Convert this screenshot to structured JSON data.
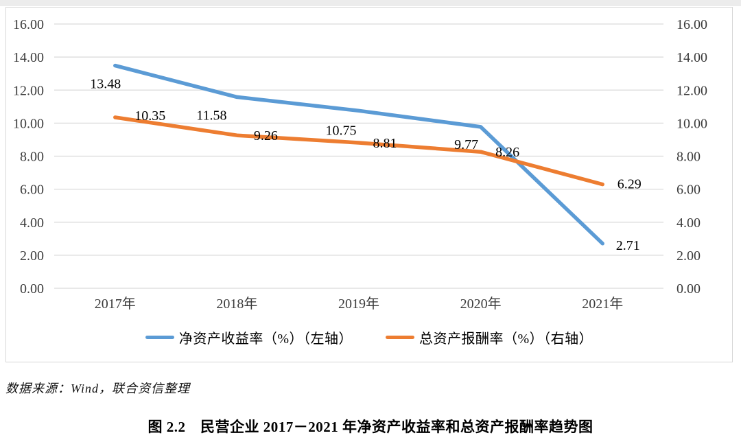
{
  "page": {
    "source_note": "数据来源：Wind，联合资信整理",
    "caption": "图 2.2　民营企业 2017－2021 年净资产收益率和总资产报酬率趋势图"
  },
  "chart_data": {
    "type": "line",
    "title": "图 2.2 民营企业 2017－2021 年净资产收益率和总资产报酬率趋势图",
    "categories": [
      "2017年",
      "2018年",
      "2019年",
      "2020年",
      "2021年"
    ],
    "series": [
      {
        "name": "净资产收益率（%）（左轴）",
        "axis": "left",
        "color": "#5B9BD5",
        "values": [
          13.48,
          11.58,
          10.75,
          9.77,
          2.71
        ]
      },
      {
        "name": "总资产报酬率（%）（右轴）",
        "axis": "right",
        "color": "#ED7D31",
        "values": [
          10.35,
          9.26,
          8.81,
          8.26,
          6.29
        ]
      }
    ],
    "left_axis": {
      "min": 0,
      "max": 16,
      "ticks": [
        "0.00",
        "2.00",
        "4.00",
        "6.00",
        "8.00",
        "10.00",
        "12.00",
        "14.00",
        "16.00"
      ]
    },
    "right_axis": {
      "min": 0,
      "max": 16,
      "ticks": [
        "0.00",
        "2.00",
        "4.00",
        "6.00",
        "8.00",
        "10.00",
        "12.00",
        "14.00",
        "16.00"
      ]
    },
    "grid": true,
    "legend_position": "bottom",
    "data_labels": true,
    "label_offsets": [
      [
        [
          -14,
          26
        ],
        [
          -37,
          26
        ],
        [
          -26,
          28
        ],
        [
          -21,
          25
        ],
        [
          37,
          2
        ]
      ],
      [
        [
          51,
          -3
        ],
        [
          42,
          0
        ],
        [
          38,
          0
        ],
        [
          39,
          0
        ],
        [
          39,
          -1
        ]
      ]
    ],
    "grid_color": "#d9d9d9",
    "tick_color": "#3b3b3b",
    "label_color": "#000000"
  }
}
